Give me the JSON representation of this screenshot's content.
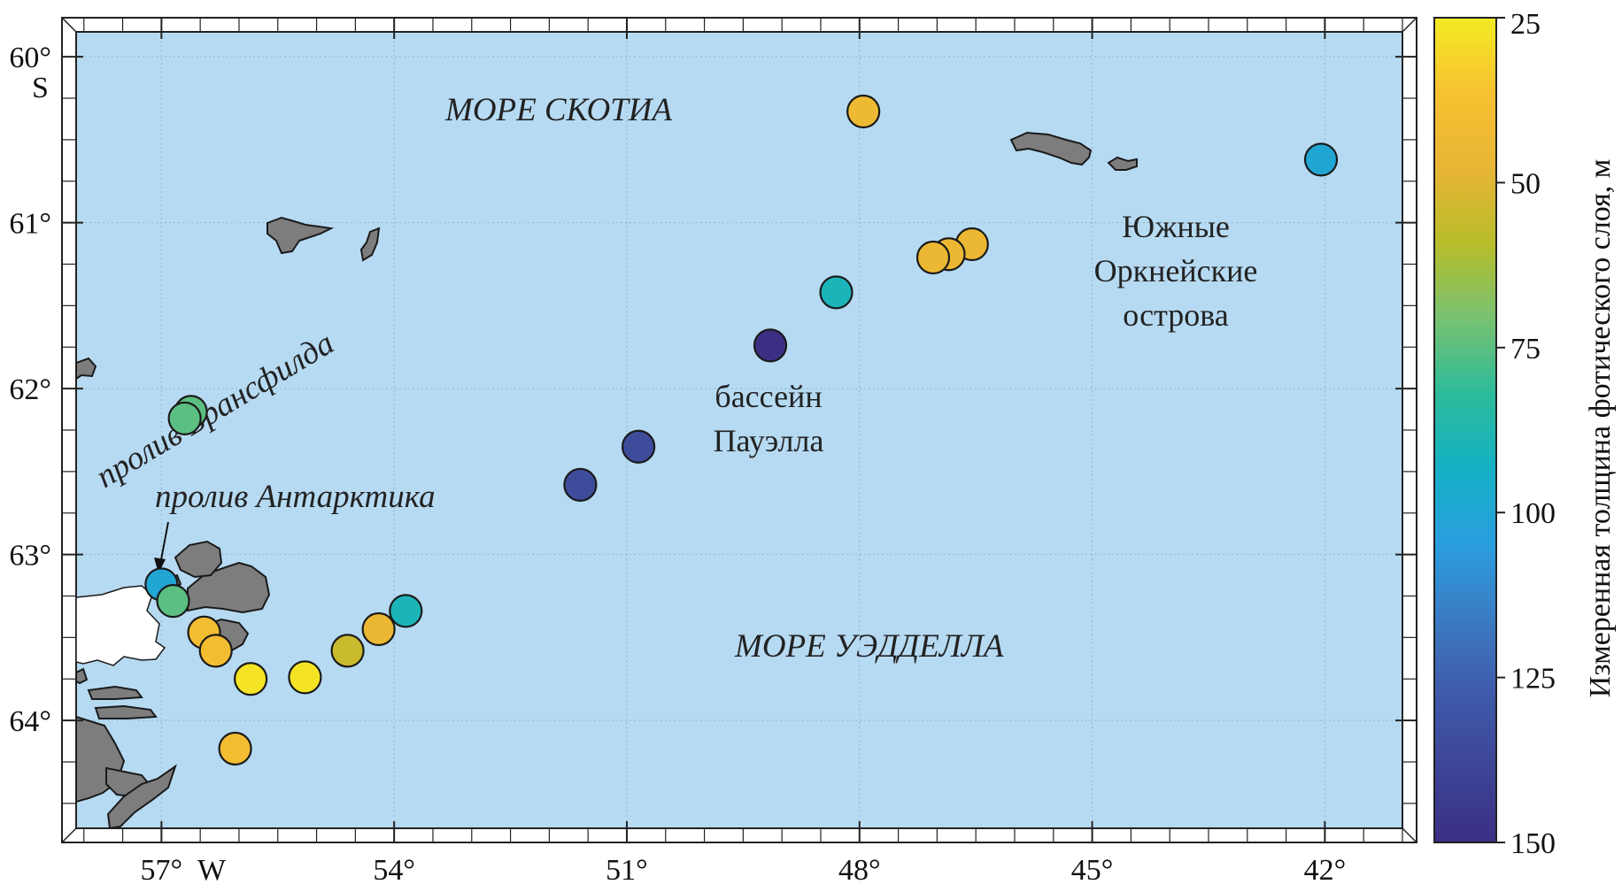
{
  "map": {
    "lon_ticks": [
      {
        "value": -57,
        "label": "57°"
      },
      {
        "value": -54,
        "label": "54°"
      },
      {
        "value": -51,
        "label": "51°"
      },
      {
        "value": -48,
        "label": "48°"
      },
      {
        "value": -45,
        "label": "45°"
      },
      {
        "value": -42,
        "label": "42°"
      }
    ],
    "lat_ticks": [
      {
        "value": -60,
        "label": "60°"
      },
      {
        "value": -61,
        "label": "61°"
      },
      {
        "value": -62,
        "label": "62°"
      },
      {
        "value": -63,
        "label": "63°"
      },
      {
        "value": -64,
        "label": "64°"
      }
    ],
    "lat_hemisphere": "S",
    "lon_hemisphere": "W",
    "labels": {
      "scotia_sea": "МОРЕ СКОТИА",
      "weddell_sea": "МОРЕ УЭДДЕЛЛА",
      "south_orkney": [
        "Южные",
        "Оркнейские",
        "острова"
      ],
      "powell_basin": [
        "бассейн",
        "Пауэлла"
      ],
      "bransfield_strait": "пролив Брансфилда",
      "antarctic_sound": "пролив Антарктика"
    },
    "colors": {
      "ocean": "#b6daf2",
      "land": "#7d7d7d",
      "ice": "#ffffff"
    }
  },
  "colorbar": {
    "label": "Измеренная толщина фотического слоя, м",
    "min": 25,
    "max": 150,
    "ticks": [
      "25",
      "50",
      "75",
      "100",
      "125",
      "150"
    ],
    "colormap": [
      "#f4eb24",
      "#f7c130",
      "#e9b535",
      "#b8bd2a",
      "#79c270",
      "#2dbb9a",
      "#14b1c4",
      "#2a9fdf",
      "#3b7cc4",
      "#3f5aaa",
      "#3d4596",
      "#3b2f84"
    ]
  },
  "chart_data": {
    "type": "scatter",
    "xlabel": "",
    "ylabel": "",
    "xlim": [
      -58.1,
      -41.0
    ],
    "ylim": [
      -64.65,
      -59.85
    ],
    "value_label": "Измеренная толщина фотического слоя, м",
    "points": [
      {
        "lon": -47.95,
        "lat": -60.33,
        "value": 43
      },
      {
        "lon": -42.05,
        "lat": -60.62,
        "value": 100
      },
      {
        "lon": -46.55,
        "lat": -61.13,
        "value": 45
      },
      {
        "lon": -46.85,
        "lat": -61.19,
        "value": 45
      },
      {
        "lon": -47.05,
        "lat": -61.21,
        "value": 45
      },
      {
        "lon": -48.3,
        "lat": -61.42,
        "value": 90
      },
      {
        "lon": -49.15,
        "lat": -61.74,
        "value": 150
      },
      {
        "lon": -50.85,
        "lat": -62.35,
        "value": 135
      },
      {
        "lon": -51.6,
        "lat": -62.58,
        "value": 135
      },
      {
        "lon": -56.62,
        "lat": -62.14,
        "value": 75
      },
      {
        "lon": -56.7,
        "lat": -62.18,
        "value": 75
      },
      {
        "lon": -57.0,
        "lat": -63.18,
        "value": 100
      },
      {
        "lon": -56.85,
        "lat": -63.28,
        "value": 75
      },
      {
        "lon": -56.45,
        "lat": -63.47,
        "value": 40
      },
      {
        "lon": -56.3,
        "lat": -63.58,
        "value": 40
      },
      {
        "lon": -55.85,
        "lat": -63.75,
        "value": 27
      },
      {
        "lon": -55.15,
        "lat": -63.74,
        "value": 27
      },
      {
        "lon": -54.6,
        "lat": -63.58,
        "value": 55
      },
      {
        "lon": -54.2,
        "lat": -63.45,
        "value": 45
      },
      {
        "lon": -53.85,
        "lat": -63.34,
        "value": 90
      },
      {
        "lon": -56.05,
        "lat": -64.17,
        "value": 40
      }
    ]
  }
}
